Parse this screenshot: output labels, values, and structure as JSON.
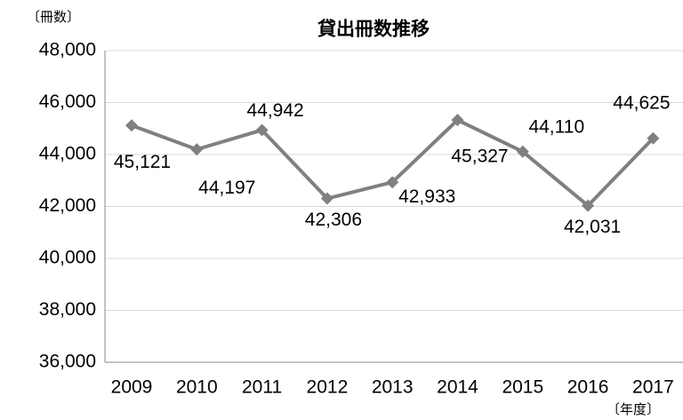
{
  "chart_data": {
    "type": "line",
    "title": "貸出冊数推移",
    "y_label": "〔冊数〕",
    "x_label": "〔年度〕",
    "categories": [
      "2009",
      "2010",
      "2011",
      "2012",
      "2013",
      "2014",
      "2015",
      "2016",
      "2017"
    ],
    "series": [
      {
        "name": "貸出冊数",
        "color": "#808080",
        "values": [
          45121,
          44197,
          44942,
          42306,
          42933,
          45327,
          44110,
          42031,
          44625
        ],
        "value_labels": [
          "45,121",
          "44,197",
          "44,942",
          "42,306",
          "42,933",
          "45,327",
          "44,110",
          "42,031",
          "44,625"
        ]
      }
    ],
    "ylim": [
      36000,
      48000
    ],
    "yticks": [
      {
        "value": 36000,
        "label": "36,000"
      },
      {
        "value": 38000,
        "label": "38,000"
      },
      {
        "value": 40000,
        "label": "40,000"
      },
      {
        "value": 42000,
        "label": "42,000"
      },
      {
        "value": 44000,
        "label": "44,000"
      },
      {
        "value": 46000,
        "label": "46,000"
      },
      {
        "value": 48000,
        "label": "48,000"
      }
    ],
    "grid": true
  }
}
